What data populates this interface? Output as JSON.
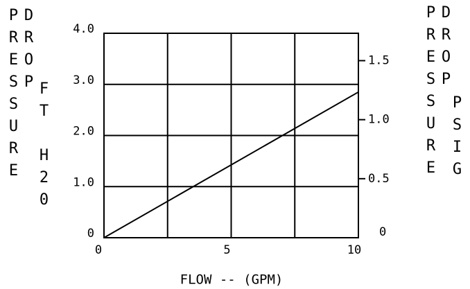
{
  "chart_data": {
    "type": "line",
    "ylabel": "PRESSURE DROP",
    "ylabel_units": "FT H20",
    "y2label": "PRESSURE DROP",
    "y2label_units": "PSIG",
    "xlabel": "FLOW -- (GPM)",
    "x": [
      0,
      10
    ],
    "series": [
      {
        "color": "#000000",
        "values": [
          0,
          2.85
        ]
      }
    ],
    "xlim": [
      0,
      10
    ],
    "xticks": [
      0,
      5,
      10
    ],
    "xgrid": [
      2.5,
      5,
      7.5
    ],
    "ylim": [
      0,
      4
    ],
    "yticks": [
      0,
      {
        "value": 1,
        "label": "1.0"
      },
      {
        "value": 2,
        "label": "2.0"
      },
      {
        "value": 3,
        "label": "3.0"
      },
      {
        "value": 4,
        "label": "4.0"
      }
    ],
    "y2lim": [
      0,
      1.732
    ],
    "y2ticks": [
      0,
      0.5,
      {
        "value": 1,
        "label": "1.0"
      },
      1.5
    ],
    "grid": true
  }
}
